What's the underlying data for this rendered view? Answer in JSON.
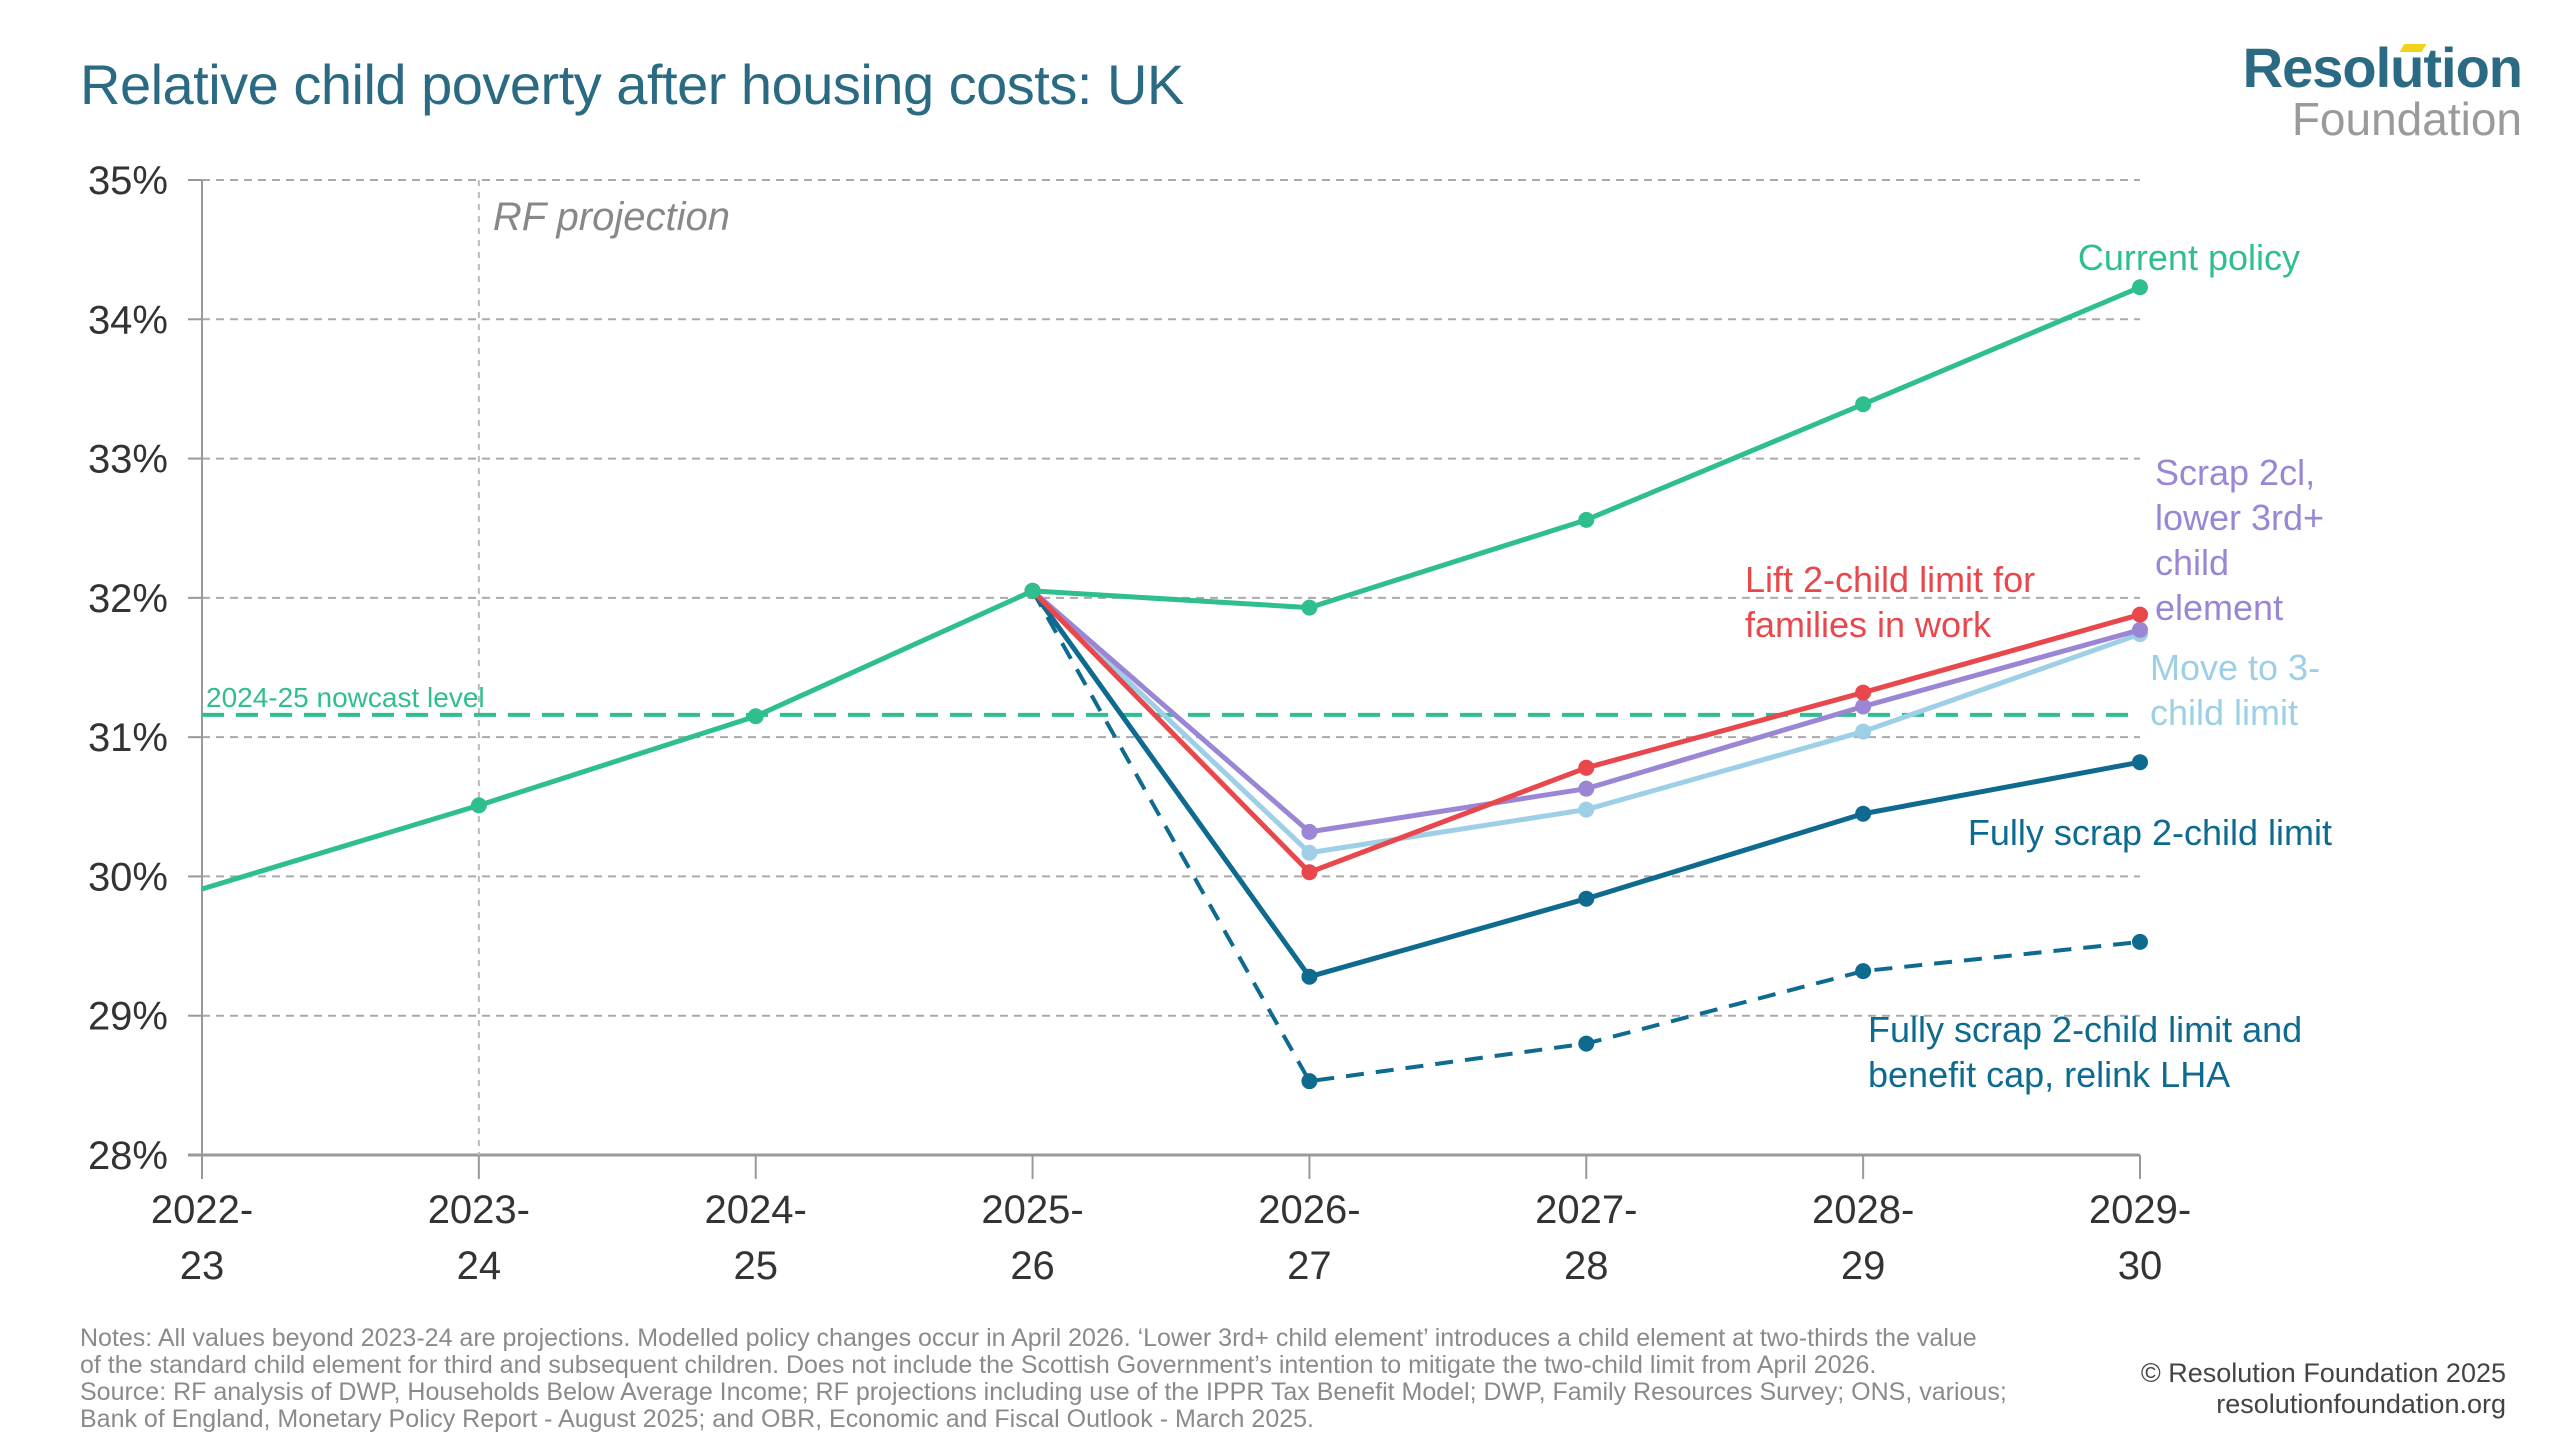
{
  "header": {
    "title": "Relative child poverty after housing costs: UK",
    "logo_line1": "Resolution",
    "logo_line2": "Foundation"
  },
  "chart_data": {
    "type": "line",
    "title": "Relative child poverty after housing costs: UK",
    "xlabel": "",
    "ylabel": "",
    "ylim": [
      28,
      35
    ],
    "y_ticks": [
      "28%",
      "29%",
      "30%",
      "31%",
      "32%",
      "33%",
      "34%",
      "35%"
    ],
    "y_tick_values": [
      28,
      29,
      30,
      31,
      32,
      33,
      34,
      35
    ],
    "grid": true,
    "categories": [
      [
        "2022-",
        "23"
      ],
      [
        "2023-",
        "24"
      ],
      [
        "2024-",
        "25"
      ],
      [
        "2025-",
        "26"
      ],
      [
        "2026-",
        "27"
      ],
      [
        "2027-",
        "28"
      ],
      [
        "2028-",
        "29"
      ],
      [
        "2029-",
        "30"
      ]
    ],
    "annotations": {
      "projection_label": "RF projection",
      "projection_start_index": 1,
      "nowcast_label": "2024-25 nowcast level",
      "nowcast_value": 31.16
    },
    "series": [
      {
        "name": "Current policy",
        "label_lines": [
          "Current policy"
        ],
        "color": "#2fbe8f",
        "dashed": false,
        "start_index": 0,
        "values": [
          29.91,
          30.51,
          31.15,
          32.05,
          31.93,
          32.56,
          33.39,
          34.23
        ]
      },
      {
        "name": "Scrap 2cl, lower 3rd+ child element",
        "label_lines": [
          "Scrap 2cl,",
          "lower 3rd+",
          "child",
          "element"
        ],
        "color": "#9b86d6",
        "dashed": false,
        "start_index": 3,
        "values": [
          32.05,
          30.32,
          30.63,
          31.22,
          31.77
        ]
      },
      {
        "name": "Move to 3-child limit",
        "label_lines": [
          "Move to 3-",
          "child limit"
        ],
        "color": "#9dcfe6",
        "dashed": false,
        "start_index": 3,
        "values": [
          32.05,
          30.17,
          30.48,
          31.04,
          31.74
        ]
      },
      {
        "name": "Lift 2-child limit for families in work",
        "label_lines": [
          "Lift 2-child limit for",
          "families in work"
        ],
        "color": "#e8474c",
        "dashed": false,
        "start_index": 3,
        "values": [
          32.05,
          30.03,
          30.78,
          31.32,
          31.88
        ]
      },
      {
        "name": "Fully scrap 2-child limit",
        "label_lines": [
          "Fully scrap 2-child limit"
        ],
        "color": "#0e6b8f",
        "dashed": false,
        "start_index": 3,
        "values": [
          32.05,
          29.28,
          29.84,
          30.45,
          30.82
        ]
      },
      {
        "name": "Fully scrap 2-child limit and benefit cap, relink LHA",
        "label_lines": [
          "Fully scrap 2-child limit and",
          "benefit cap, relink LHA"
        ],
        "color": "#0e6b8f",
        "dashed": true,
        "start_index": 3,
        "values": [
          32.05,
          28.53,
          28.8,
          29.32,
          29.53
        ]
      }
    ]
  },
  "footer": {
    "notes": [
      "Notes: All values beyond 2023-24 are projections. Modelled policy changes occur in April 2026. ‘Lower 3rd+ child element’ introduces a child element at two-thirds the value",
      "of the standard child element for third and subsequent children. Does not include the Scottish Government’s intention to mitigate the two-child limit from April 2026.",
      "Source: RF analysis of DWP, Households Below Average Income; RF projections including use of the IPPR Tax Benefit Model; DWP, Family Resources Survey; ONS, various;",
      "Bank of England, Monetary Policy Report - August 2025; and OBR, Economic and Fiscal Outlook - March 2025."
    ],
    "copyright": "© Resolution Foundation 2025",
    "website": "resolutionfoundation.org"
  }
}
